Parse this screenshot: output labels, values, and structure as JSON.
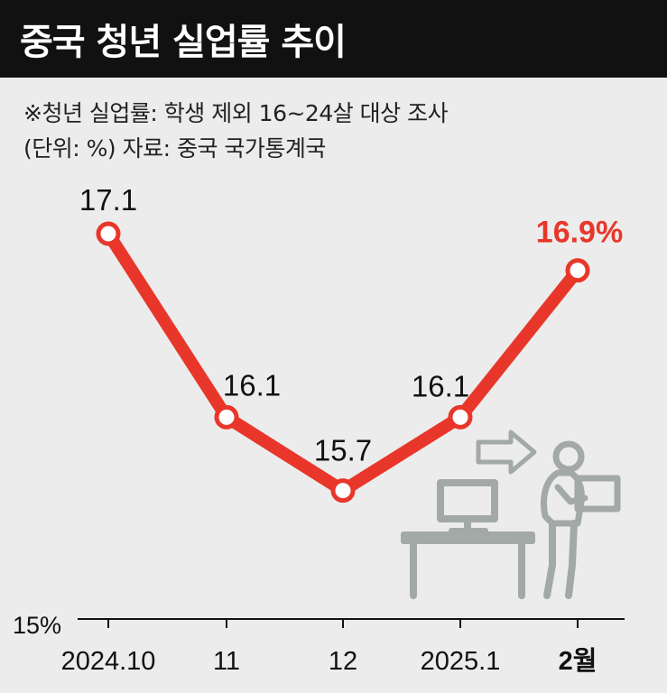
{
  "header": {
    "title": "중국 청년 실업률 추이",
    "note_definition": "※청년 실업률: 학생 제외 16~24살 대상 조사",
    "note_source": "(단위: %)  자료: 중국 국가통계국"
  },
  "colors": {
    "title_background": "#111111",
    "title_text": "#ffffff",
    "series_line": "#e8372a",
    "highlight_label": "#e8372a",
    "text": "#111111",
    "background": "#ececec",
    "illustration": "#a3a9a6"
  },
  "icons": {
    "illustration": "office-worker-leaving-desk-icon"
  },
  "chart_data": {
    "type": "line",
    "categories": [
      "2024.10",
      "11",
      "12",
      "2025.1",
      "2월"
    ],
    "values": [
      17.1,
      16.1,
      15.7,
      16.1,
      16.9
    ],
    "data_labels": [
      "17.1",
      "16.1",
      "15.7",
      "16.1",
      "16.9%"
    ],
    "highlight_index": 4,
    "baseline_label": "15%",
    "ylim": [
      15,
      17.1
    ],
    "grid": false,
    "legend": "none"
  }
}
